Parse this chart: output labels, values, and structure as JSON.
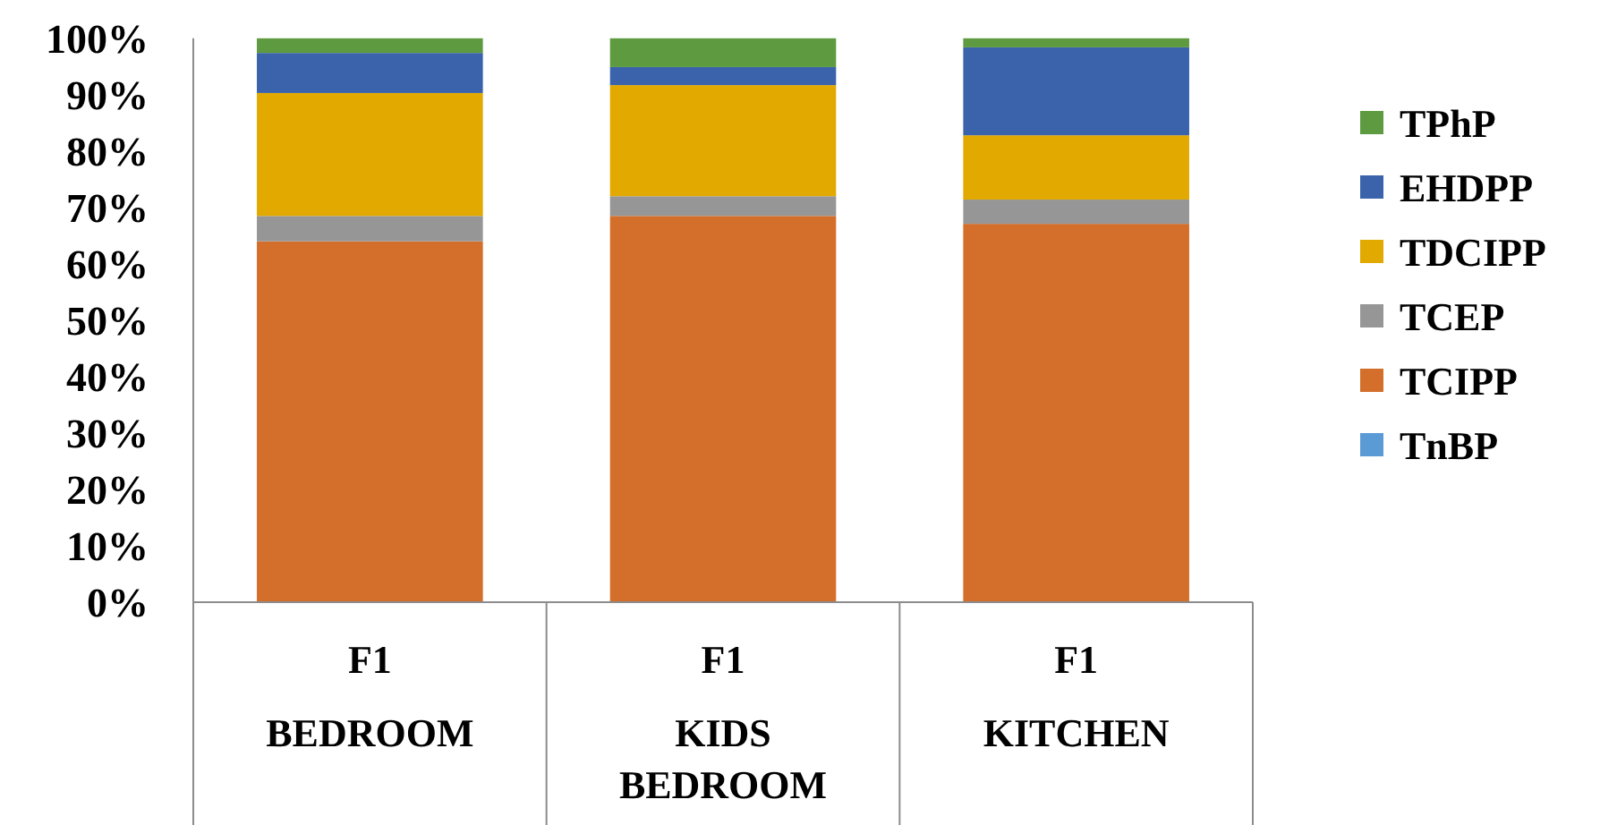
{
  "chart_data": {
    "type": "bar",
    "stacked": true,
    "categories": [
      "F1\nBEDROOM",
      "F1\nKIDS BEDROOM",
      "F1\nKITCHEN"
    ],
    "series": [
      {
        "name": "TnBP",
        "color": "#5b9bd5",
        "values": [
          0,
          0,
          0
        ]
      },
      {
        "name": "TCIPP",
        "color": "#d36e2b",
        "values": [
          64,
          68.5,
          67.1
        ]
      },
      {
        "name": "TCEP",
        "color": "#969696",
        "values": [
          4.5,
          3.5,
          4.3
        ]
      },
      {
        "name": "TDCIPP",
        "color": "#e2a900",
        "values": [
          21.8,
          19.7,
          11.4
        ]
      },
      {
        "name": "EHDPP",
        "color": "#3a63ac",
        "values": [
          7.1,
          3.2,
          15.6
        ]
      },
      {
        "name": "TPhP",
        "color": "#5e9a3f",
        "values": [
          2.6,
          5.1,
          1.6
        ]
      }
    ],
    "ylim": [
      0,
      100
    ],
    "yticks": [
      {
        "value": 0,
        "label": "0%"
      },
      {
        "value": 10,
        "label": "10%"
      },
      {
        "value": 20,
        "label": "20%"
      },
      {
        "value": 30,
        "label": "30%"
      },
      {
        "value": 40,
        "label": "40%"
      },
      {
        "value": 50,
        "label": "50%"
      },
      {
        "value": 60,
        "label": "60%"
      },
      {
        "value": 70,
        "label": "70%"
      },
      {
        "value": 80,
        "label": "80%"
      },
      {
        "value": 90,
        "label": "90%"
      },
      {
        "value": 100,
        "label": "100%"
      }
    ],
    "grid": false,
    "legend": "right"
  }
}
